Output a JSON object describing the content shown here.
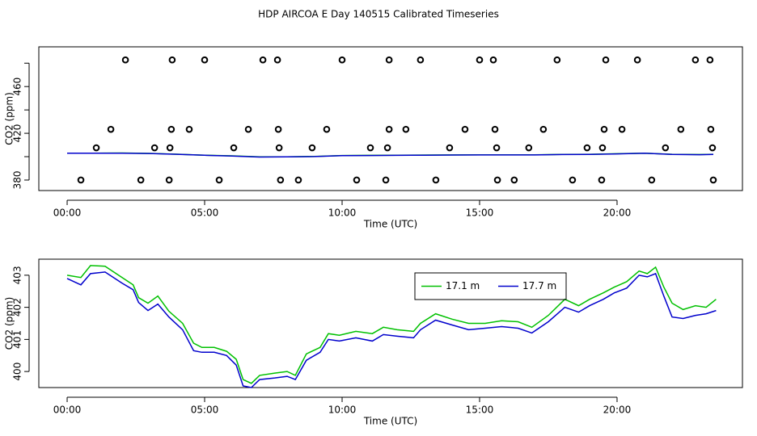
{
  "title": "HDP AIRCOA E  Day 140515  Calibrated Timeseries",
  "chart_data": [
    {
      "type": "scatter",
      "xlabel": "Time (UTC)",
      "ylabel": "CO2 (ppm)",
      "xlim": [
        -1.03,
        24.56
      ],
      "ylim": [
        371,
        494
      ],
      "xticks": [
        {
          "value": 0,
          "label": "00:00"
        },
        {
          "value": 5,
          "label": "05:00"
        },
        {
          "value": 10,
          "label": "10:00"
        },
        {
          "value": 15,
          "label": "15:00"
        },
        {
          "value": 20,
          "label": "20:00"
        }
      ],
      "yticks": [
        380,
        420,
        460
      ],
      "yminor": [
        400,
        440,
        480
      ],
      "point_color": "#000000",
      "x": [
        2.12,
        3.82,
        5.0,
        7.12,
        7.65,
        10.0,
        11.71,
        12.85,
        15.0,
        15.5,
        17.82,
        19.59,
        20.74,
        22.85,
        23.38,
        1.59,
        3.79,
        4.44,
        6.59,
        7.68,
        9.44,
        11.71,
        12.32,
        14.47,
        15.56,
        17.32,
        19.53,
        20.18,
        22.32,
        23.41,
        1.06,
        3.18,
        3.74,
        6.06,
        7.71,
        8.91,
        11.03,
        11.65,
        13.91,
        15.62,
        16.79,
        18.91,
        19.47,
        21.76,
        23.47,
        0.5,
        2.68,
        3.71,
        5.53,
        7.76,
        8.41,
        10.53,
        11.59,
        13.41,
        15.65,
        16.26,
        18.38,
        19.44,
        21.26,
        23.5
      ],
      "values": [
        482.8,
        482.8,
        482.8,
        482.8,
        482.8,
        482.8,
        482.8,
        482.8,
        482.8,
        482.8,
        482.8,
        482.8,
        482.8,
        482.8,
        482.8,
        423.4,
        423.4,
        423.4,
        423.4,
        423.4,
        423.4,
        423.4,
        423.4,
        423.4,
        423.4,
        423.4,
        423.4,
        423.4,
        423.4,
        423.4,
        407.6,
        407.6,
        407.6,
        407.6,
        407.6,
        407.6,
        407.6,
        407.6,
        407.6,
        407.6,
        407.6,
        407.6,
        407.6,
        407.6,
        407.6,
        380,
        380,
        380,
        380,
        380,
        380,
        380,
        380,
        380,
        380,
        380,
        380,
        380,
        380,
        380
      ],
      "series": [
        {
          "color": "#00c000",
          "x": [
            0,
            1,
            2,
            3,
            4,
            5,
            6,
            7,
            8,
            9,
            10,
            11,
            12,
            13,
            14,
            15,
            16,
            17,
            18,
            19,
            20,
            21,
            22,
            23,
            23.5
          ],
          "values": [
            403.0,
            403.0,
            403.1,
            402.8,
            402.1,
            401.3,
            400.7,
            399.8,
            399.9,
            400.2,
            401.0,
            401.1,
            401.2,
            401.4,
            401.5,
            401.6,
            401.6,
            401.6,
            401.9,
            402.0,
            402.5,
            403.0,
            402.0,
            401.8,
            402.0
          ]
        },
        {
          "color": "#0000cc",
          "x": [
            0,
            1,
            2,
            3,
            4,
            5,
            6,
            7,
            8,
            9,
            10,
            11,
            12,
            13,
            14,
            15,
            16,
            17,
            18,
            19,
            20,
            21,
            22,
            23,
            23.5
          ],
          "values": [
            402.9,
            402.9,
            403.0,
            402.7,
            402.0,
            401.2,
            400.6,
            399.7,
            399.8,
            400.1,
            400.9,
            401.0,
            401.1,
            401.3,
            401.4,
            401.5,
            401.5,
            401.5,
            401.8,
            401.9,
            402.4,
            402.9,
            401.9,
            401.7,
            401.9
          ]
        }
      ]
    },
    {
      "type": "line",
      "xlabel": "Time (UTC)",
      "ylabel": "CO2 (ppm)",
      "xlim": [
        -1.03,
        24.56
      ],
      "ylim": [
        399.5,
        403.5
      ],
      "xticks": [
        {
          "value": 0,
          "label": "00:00"
        },
        {
          "value": 5,
          "label": "05:00"
        },
        {
          "value": 10,
          "label": "10:00"
        },
        {
          "value": 15,
          "label": "15:00"
        },
        {
          "value": 20,
          "label": "20:00"
        }
      ],
      "yticks": [
        400,
        401,
        402,
        403
      ],
      "legend": "top-right",
      "x": [
        0,
        0.5,
        0.85,
        1.38,
        2.0,
        2.4,
        2.6,
        2.94,
        3.3,
        3.7,
        4.2,
        4.6,
        4.9,
        5.35,
        5.8,
        6.15,
        6.4,
        6.7,
        7.0,
        7.55,
        8.0,
        8.3,
        8.7,
        9.2,
        9.5,
        9.9,
        10.5,
        11.1,
        11.5,
        12.0,
        12.6,
        12.85,
        13.4,
        14.0,
        14.6,
        15.2,
        15.8,
        16.4,
        16.9,
        17.5,
        18.1,
        18.6,
        19.0,
        19.5,
        19.9,
        20.35,
        20.8,
        21.1,
        21.4,
        21.7,
        22.0,
        22.4,
        22.85,
        23.24,
        23.6
      ],
      "series": [
        {
          "name": "17.1 m",
          "color": "#00c000",
          "values": [
            403.0,
            402.93,
            403.3,
            403.28,
            402.93,
            402.7,
            402.3,
            402.13,
            402.35,
            401.88,
            401.5,
            400.88,
            400.75,
            400.75,
            400.63,
            400.38,
            399.75,
            399.63,
            399.88,
            399.95,
            400.0,
            399.88,
            400.55,
            400.75,
            401.18,
            401.13,
            401.25,
            401.18,
            401.38,
            401.3,
            401.25,
            401.5,
            401.8,
            401.63,
            401.5,
            401.5,
            401.58,
            401.55,
            401.38,
            401.75,
            402.25,
            402.05,
            402.25,
            402.45,
            402.63,
            402.8,
            403.13,
            403.05,
            403.25,
            402.63,
            402.13,
            401.93,
            402.05,
            402.0,
            402.25
          ]
        },
        {
          "name": "17.7 m",
          "color": "#0000cc",
          "values": [
            402.9,
            402.7,
            403.05,
            403.1,
            402.75,
            402.55,
            402.15,
            401.9,
            402.1,
            401.7,
            401.3,
            400.65,
            400.6,
            400.6,
            400.5,
            400.2,
            399.55,
            399.5,
            399.75,
            399.8,
            399.85,
            399.75,
            400.35,
            400.6,
            401.0,
            400.95,
            401.05,
            400.95,
            401.15,
            401.1,
            401.05,
            401.3,
            401.6,
            401.45,
            401.3,
            401.35,
            401.4,
            401.35,
            401.2,
            401.55,
            402.0,
            401.85,
            402.05,
            402.25,
            402.45,
            402.6,
            403.0,
            402.95,
            403.05,
            402.35,
            401.7,
            401.65,
            401.75,
            401.8,
            401.9
          ]
        }
      ]
    }
  ]
}
